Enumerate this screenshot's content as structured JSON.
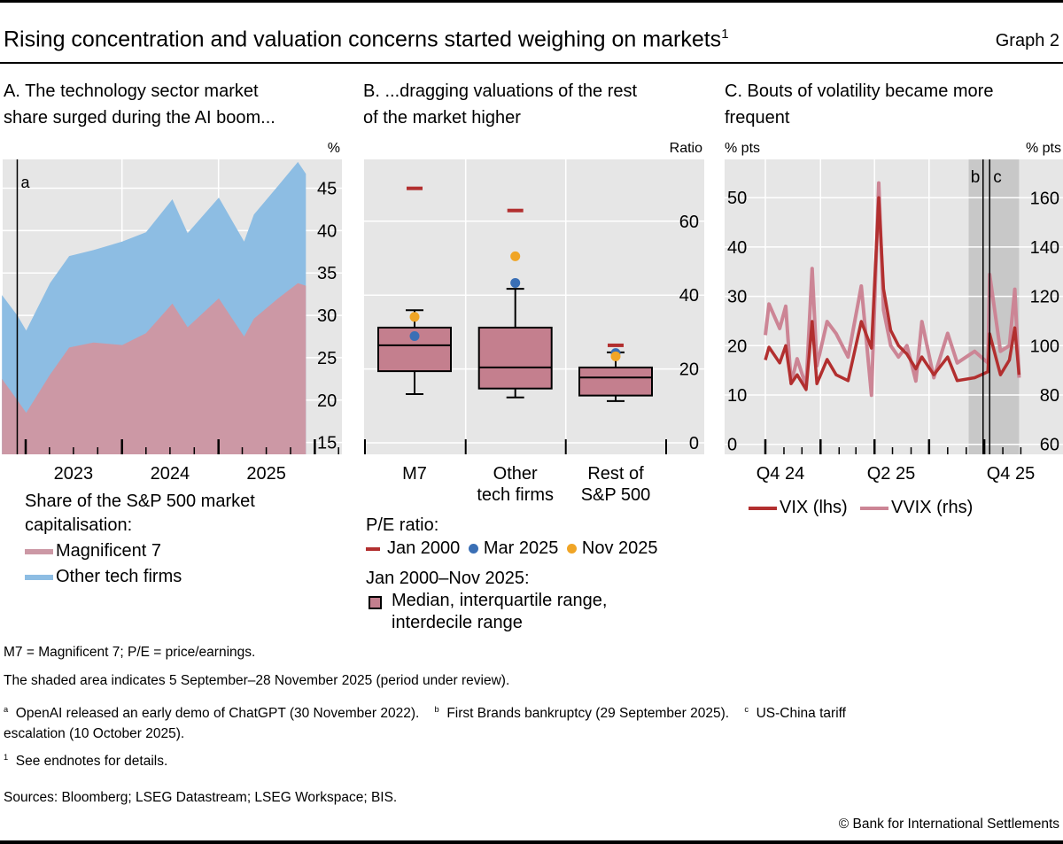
{
  "header": {
    "title": "Rising concentration and valuation concerns started weighing on markets",
    "title_sup": "1",
    "graph_label": "Graph 2"
  },
  "colors": {
    "m7_area": "#cc98a5",
    "other_tech_area": "#8dbde3",
    "box_fill": "#c47f8e",
    "jan2000": "#b22f2f",
    "mar2025": "#3a6fb5",
    "nov2025": "#f0a526",
    "vix": "#b22f2f",
    "vvix": "#cc8595",
    "plot_bg": "#e6e6e6",
    "shaded_period": "#c8c8c8"
  },
  "panels": {
    "a": {
      "title_line1": "A. The technology sector market",
      "title_line2": "share surged during the AI boom...",
      "legend_title1": "Share of the S&P 500 market",
      "legend_title2": "capitalisation:",
      "legend_m7": "Magnificent 7",
      "legend_other": "Other tech firms"
    },
    "b": {
      "title_line1": "B. ...dragging valuations of the rest",
      "title_line2": "of the market higher",
      "legend_pe": "P/E ratio:",
      "legend_jan2000": "Jan 2000",
      "legend_mar2025": "Mar 2025",
      "legend_nov2025": "Nov 2025",
      "legend_range_title": "Jan 2000–Nov 2025:",
      "legend_box1": "Median, interquartile range,",
      "legend_box2": "interdecile range"
    },
    "c": {
      "title_line1": "C. Bouts of volatility became more",
      "title_line2": "frequent",
      "legend_vix": "VIX (lhs)",
      "legend_vvix": "VVIX (rhs)"
    }
  },
  "chart_data": [
    {
      "type": "area",
      "stacked": true,
      "ylabel": "%",
      "ylim": [
        13.6,
        48.4
      ],
      "yticks": [
        "15",
        "20",
        "25",
        "30",
        "35",
        "40",
        "45"
      ],
      "xticks": [
        "2023",
        "2024",
        "2025"
      ],
      "grid": true,
      "annotations": [
        {
          "label": "a",
          "date": "2022-11-30"
        }
      ],
      "x": [
        "2022-10-03",
        "2022-11-30",
        "2023-01-03",
        "2023-04-03",
        "2023-06-15",
        "2023-09-15",
        "2024-01-02",
        "2024-04-01",
        "2024-07-10",
        "2024-09-06",
        "2025-01-02",
        "2025-04-08",
        "2025-05-15",
        "2025-08-15",
        "2025-10-29",
        "2025-11-28"
      ],
      "series": [
        {
          "name": "Magnificent 7",
          "values": [
            22.5,
            20.0,
            18.5,
            23.0,
            26.2,
            26.8,
            26.5,
            27.9,
            31.4,
            28.6,
            32.0,
            27.5,
            29.6,
            32.0,
            33.8,
            33.5
          ]
        },
        {
          "name": "Other tech firms",
          "cumulative_values": [
            32.4,
            30.0,
            28.2,
            33.8,
            37.0,
            37.7,
            38.7,
            39.8,
            43.7,
            39.7,
            43.9,
            38.7,
            41.9,
            45.3,
            48.1,
            46.7
          ]
        }
      ]
    },
    {
      "type": "box",
      "ylabel": "Ratio",
      "ylim": [
        -3,
        77
      ],
      "yticks": [
        "0",
        "20",
        "40",
        "60"
      ],
      "categories": [
        [
          "M7"
        ],
        [
          "Other",
          "tech firms"
        ],
        [
          "Rest of",
          "S&P 500"
        ]
      ],
      "boxes": [
        {
          "p10": 13.2,
          "q1": 19.4,
          "median": 26.4,
          "q3": 31.2,
          "p90": 35.9,
          "jan2000": 68.9,
          "mar2025": 28.9,
          "nov2025": 34.1
        },
        {
          "p10": 12.3,
          "q1": 14.7,
          "median": 20.4,
          "q3": 31.2,
          "p90": 41.7,
          "jan2000": 62.9,
          "mar2025": 43.3,
          "nov2025": 50.5
        },
        {
          "p10": 11.3,
          "q1": 12.8,
          "median": 17.7,
          "q3": 20.4,
          "p90": 24.5,
          "jan2000": 26.4,
          "mar2025": 24.3,
          "nov2025": 23.4
        }
      ]
    },
    {
      "type": "line",
      "ylabel_left": "% pts",
      "ylabel_right": "% pts",
      "ylim_left": [
        -2,
        57.8
      ],
      "ylim_right": [
        56,
        175.6
      ],
      "yticks_left": [
        "0",
        "10",
        "20",
        "30",
        "40",
        "50"
      ],
      "yticks_right": [
        "60",
        "80",
        "100",
        "120",
        "140",
        "160"
      ],
      "xticks": [
        "Q4 24",
        "Q2 25",
        "Q4 25"
      ],
      "shaded_period": [
        "2025-09-05",
        "2025-11-28"
      ],
      "annotations": [
        {
          "label": "b",
          "date": "2025-09-29"
        },
        {
          "label": "c",
          "date": "2025-10-10"
        }
      ],
      "x": [
        "2024-10-01",
        "2024-10-07",
        "2024-10-25",
        "2024-11-04",
        "2024-11-13",
        "2024-11-23",
        "2024-12-08",
        "2024-12-18",
        "2024-12-26",
        "2025-01-12",
        "2025-01-27",
        "2025-02-16",
        "2025-03-10",
        "2025-03-27",
        "2025-04-08",
        "2025-04-16",
        "2025-04-28",
        "2025-05-11",
        "2025-05-25",
        "2025-06-09",
        "2025-06-19",
        "2025-07-09",
        "2025-08-01",
        "2025-08-17",
        "2025-09-15",
        "2025-10-07",
        "2025-10-10",
        "2025-10-28",
        "2025-11-12",
        "2025-11-21",
        "2025-11-28"
      ],
      "series": [
        {
          "name": "VIX (lhs)",
          "axis": "left",
          "values": [
            17.1,
            19.7,
            16.5,
            20.0,
            12.3,
            14.1,
            11.1,
            24.9,
            12.3,
            17.2,
            14.1,
            12.9,
            24.9,
            19.5,
            50.0,
            31.5,
            23.1,
            20.0,
            18.3,
            15.3,
            17.7,
            14.1,
            17.7,
            12.9,
            13.5,
            14.7,
            22.4,
            14.1,
            17.1,
            23.6,
            14.1
          ]
        },
        {
          "name": "VVIX (rhs)",
          "axis": "right",
          "values": [
            104.3,
            116.9,
            107.0,
            116.0,
            84.7,
            94.7,
            83.5,
            131.3,
            91.9,
            109.8,
            104.9,
            95.4,
            124.2,
            79.9,
            166.0,
            114.5,
            100.0,
            95.4,
            100.0,
            85.7,
            109.8,
            87.0,
            105.0,
            93.0,
            97.7,
            93.0,
            128.9,
            97.7,
            100.0,
            122.9,
            87.0
          ]
        }
      ]
    }
  ],
  "footnotes": {
    "abbrev": "M7 = Magnificent 7; P/E = price/earnings.",
    "shaded": "The shaded area indicates 5 September–28 November 2025 (period under review).",
    "note_a_mark": "a",
    "note_a": "OpenAI released an early demo of ChatGPT (30 November 2022).",
    "note_b_mark": "b",
    "note_b": "First Brands bankruptcy (29 September 2025).",
    "note_c_mark": "c",
    "note_c1": "US-China tariff",
    "note_c2": "escalation (10 October 2025).",
    "note_1_mark": "1",
    "note_1": "See endnotes for details.",
    "sources": "Sources: Bloomberg; LSEG Datastream; LSEG Workspace; BIS.",
    "copyright": "© Bank for International Settlements"
  }
}
